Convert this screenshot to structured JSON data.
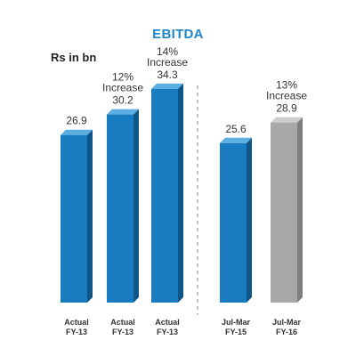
{
  "chart_data": {
    "type": "bar",
    "title": "EBITDA",
    "ylabel": "Rs in bn",
    "ylim": [
      0,
      40
    ],
    "grid": false,
    "categories": [
      [
        "Actual",
        "FY-13"
      ],
      [
        "Actual",
        "FY-13"
      ],
      [
        "Actual",
        "FY-13"
      ],
      [
        "Jul-Mar",
        "FY-15"
      ],
      [
        "Jul-Mar",
        "FY-16"
      ]
    ],
    "values": [
      26.9,
      30.2,
      34.3,
      25.6,
      28.9
    ],
    "value_labels": [
      "26.9",
      "30.2",
      "34.3",
      "25.6",
      "28.9"
    ],
    "annotations": [
      {
        "bar_index": 1,
        "lines": [
          "12%",
          "Increase"
        ]
      },
      {
        "bar_index": 2,
        "lines": [
          "14%",
          "Increase"
        ]
      },
      {
        "bar_index": 4,
        "lines": [
          "13%",
          "Increase"
        ]
      }
    ],
    "bar_colors": [
      "#1a7cc0",
      "#1a7cc0",
      "#1a7cc0",
      "#1a7cc0",
      "#a6a6a6"
    ],
    "separator": {
      "after_index": 2,
      "style": "dashed"
    }
  },
  "colors": {
    "title": "#1f86c8",
    "blue_front": "#1a7cc0",
    "blue_side": "#0f5586",
    "blue_top": "#5aaee0",
    "gray_front": "#a8a8a8",
    "gray_side": "#7e7e7e",
    "gray_top": "#cdcdcd",
    "text": "#333333"
  }
}
